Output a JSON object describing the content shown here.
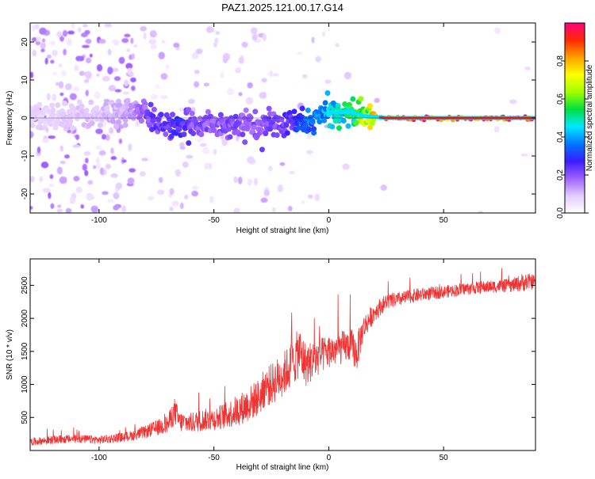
{
  "page": {
    "title": "PAZ1.2025.121.00.17.G14"
  },
  "chart_data": [
    {
      "type": "heatmap",
      "title": "PAZ1.2025.121.00.17.G14",
      "xlabel": "Height of straight line (km)",
      "ylabel": "Frequency (Hz)",
      "xlim": [
        -130,
        90
      ],
      "ylim": [
        -25,
        25
      ],
      "x_ticks": [
        -100,
        -50,
        0,
        50
      ],
      "y_ticks": [
        -20,
        -10,
        0,
        10,
        20
      ],
      "colorbar": {
        "label": "Normalized spectral amplitude",
        "range": [
          0,
          1
        ],
        "ticks": [
          0.0,
          0.2,
          0.4,
          0.6,
          0.8
        ],
        "colors": [
          "#ffffff",
          "#e4ccff",
          "#a060ff",
          "#3a1cff",
          "#0077ff",
          "#00e8ff",
          "#00e040",
          "#a0ff00",
          "#ffff00",
          "#ffa000",
          "#ff2a00",
          "#ff0080"
        ]
      },
      "ridge": {
        "x": [
          -120,
          -110,
          -100,
          -95,
          -90,
          -85,
          -80,
          -75,
          -70,
          -65,
          -60,
          -55,
          -50,
          -45,
          -40,
          -35,
          -30,
          -25,
          -20,
          -15,
          -10,
          -5,
          0,
          5,
          10,
          15,
          20,
          25,
          30,
          40,
          50,
          60,
          70,
          80,
          90
        ],
        "frequency": [
          0.5,
          1.0,
          0.5,
          1.0,
          2.0,
          2.0,
          1.0,
          -1.0,
          -2.0,
          -3.0,
          -1.5,
          -1.0,
          -1.5,
          -2.0,
          -1.5,
          -2.0,
          -2.5,
          -1.5,
          -2.0,
          -1.0,
          -1.5,
          0.0,
          1.5,
          1.5,
          1.5,
          0.5,
          0.3,
          0.0,
          0.0,
          0.0,
          0.0,
          0.0,
          0.0,
          0.0,
          0.0
        ],
        "amplitude": [
          0.08,
          0.1,
          0.1,
          0.12,
          0.12,
          0.15,
          0.2,
          0.25,
          0.25,
          0.3,
          0.22,
          0.22,
          0.2,
          0.22,
          0.22,
          0.2,
          0.22,
          0.22,
          0.25,
          0.28,
          0.35,
          0.4,
          0.45,
          0.5,
          0.55,
          0.65,
          0.75,
          0.88,
          0.92,
          0.95,
          0.95,
          0.95,
          0.95,
          0.95,
          0.95
        ]
      }
    },
    {
      "type": "line",
      "xlabel": "Height of straight line (km)",
      "ylabel": "SNR (10 * v/v)",
      "xlim": [
        -130,
        90
      ],
      "ylim": [
        0,
        2900
      ],
      "x_ticks": [
        -100,
        -50,
        0,
        50
      ],
      "y_ticks": [
        500,
        1000,
        1500,
        2000,
        2500
      ],
      "color": "#ee3333",
      "series": [
        {
          "x": [
            -130,
            -120,
            -110,
            -100,
            -90,
            -85,
            -80,
            -75,
            -70,
            -67,
            -65,
            -60,
            -55,
            -50,
            -45,
            -40,
            -35,
            -30,
            -28,
            -25,
            -20,
            -15,
            -13,
            -10,
            -5,
            0,
            5,
            10,
            12,
            15,
            20,
            25,
            30,
            35,
            40,
            50,
            60,
            70,
            80,
            85,
            90
          ],
          "values": [
            130,
            160,
            180,
            160,
            200,
            230,
            280,
            340,
            400,
            600,
            430,
            420,
            460,
            480,
            530,
            600,
            700,
            820,
            950,
            1000,
            1150,
            1350,
            1500,
            1300,
            1400,
            1500,
            1550,
            1600,
            1450,
            1850,
            2100,
            2250,
            2280,
            2330,
            2360,
            2400,
            2450,
            2480,
            2500,
            2550,
            2560
          ],
          "noise_amplitude": [
            70,
            80,
            80,
            80,
            90,
            100,
            120,
            150,
            180,
            260,
            200,
            190,
            210,
            220,
            250,
            300,
            330,
            360,
            380,
            400,
            420,
            440,
            500,
            420,
            360,
            320,
            320,
            300,
            360,
            240,
            180,
            150,
            140,
            130,
            130,
            120,
            120,
            120,
            130,
            180,
            130
          ]
        }
      ]
    }
  ]
}
